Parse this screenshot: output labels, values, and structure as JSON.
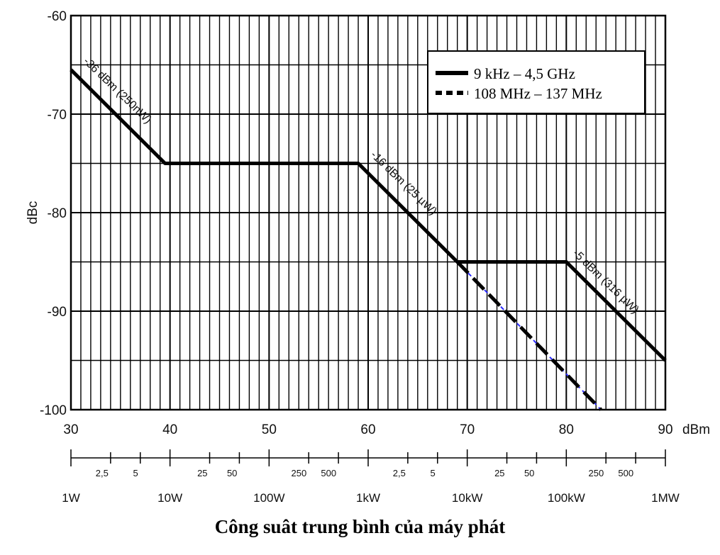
{
  "caption": "Công suât trung bình của máy phát",
  "chart_data": {
    "type": "line",
    "title": "",
    "xlabel": "dBm",
    "ylabel": "dBc",
    "xlim": [
      30,
      90
    ],
    "ylim": [
      -100,
      -60
    ],
    "grid": true,
    "x_ticks": [
      "30",
      "40",
      "50",
      "60",
      "70",
      "80",
      "90"
    ],
    "y_ticks": [
      "-60",
      "-70",
      "-80",
      "-90",
      "-100"
    ],
    "power_minor_labels": [
      {
        "x": 34,
        "label": "2,5"
      },
      {
        "x": 37,
        "label": "5"
      },
      {
        "x": 44,
        "label": "25"
      },
      {
        "x": 47,
        "label": "50"
      },
      {
        "x": 54,
        "label": "250"
      },
      {
        "x": 57,
        "label": "500"
      },
      {
        "x": 64,
        "label": "2,5"
      },
      {
        "x": 67,
        "label": "5"
      },
      {
        "x": 74,
        "label": "25"
      },
      {
        "x": 77,
        "label": "50"
      },
      {
        "x": 84,
        "label": "250"
      },
      {
        "x": 87,
        "label": "500"
      }
    ],
    "power_major_labels": [
      {
        "x": 30,
        "label": "1W"
      },
      {
        "x": 40,
        "label": "10W"
      },
      {
        "x": 50,
        "label": "100W"
      },
      {
        "x": 60,
        "label": "1kW"
      },
      {
        "x": 70,
        "label": "10kW"
      },
      {
        "x": 80,
        "label": "100kW"
      },
      {
        "x": 90,
        "label": "1MW"
      }
    ],
    "series": [
      {
        "name": "9 kHz – 4,5 GHz",
        "style": "solid",
        "color": "#000000",
        "points": [
          [
            30,
            -65.5
          ],
          [
            39.5,
            -75
          ],
          [
            59,
            -75
          ],
          [
            69,
            -85
          ],
          [
            80,
            -85
          ],
          [
            90,
            -95
          ]
        ]
      },
      {
        "name": "108 MHz – 137 MHz",
        "style": "dashed",
        "color": "#000000",
        "points": [
          [
            69,
            -85
          ],
          [
            83.5,
            -100
          ]
        ]
      }
    ],
    "blue_trace_color": "#2a2aff",
    "annotations": [
      {
        "text": "-36 dBm (250nW)",
        "x": 31.2,
        "y": -64.7
      },
      {
        "text": "-16 dBm (25 µW)",
        "x": 60.2,
        "y": -74.2
      },
      {
        "text": "-5 dBm (316 µW)",
        "x": 80.6,
        "y": -84.2
      }
    ]
  }
}
